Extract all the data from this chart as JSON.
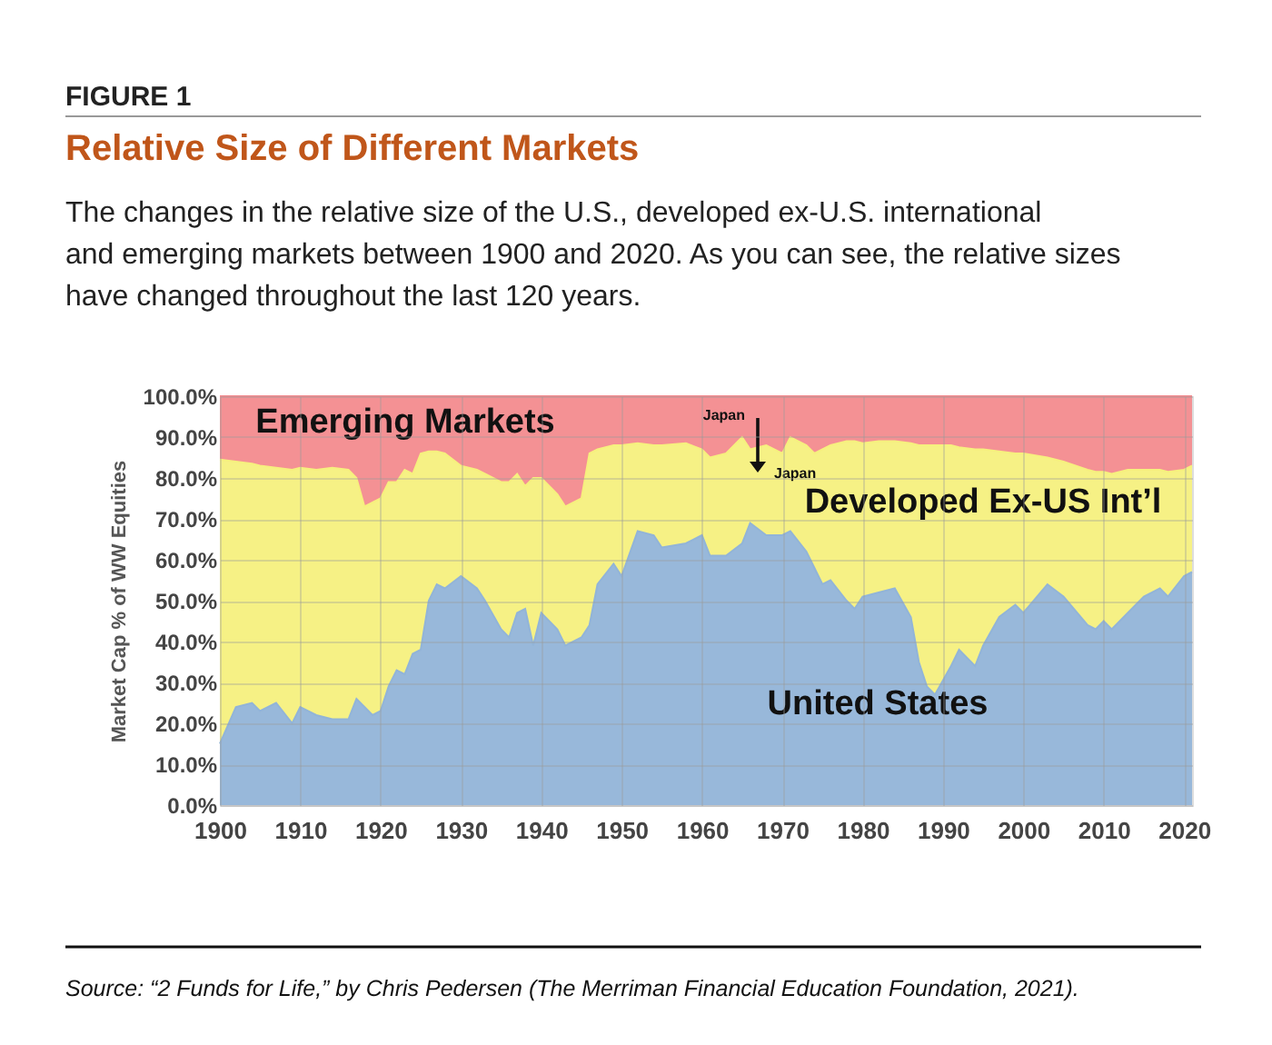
{
  "chart_data": {
    "type": "area",
    "stacked": true,
    "title": "Relative Size of Different Markets",
    "subtitle": "The changes in the relative size of the U.S., developed ex-U.S. international and emerging markets between 1900 and 2020. As you can see, the relative sizes have changed throughout the last 120 years.",
    "ylabel": "Market Cap % of WW Equities",
    "x": [
      1900,
      1902,
      1904,
      1905,
      1907,
      1909,
      1910,
      1912,
      1914,
      1916,
      1917,
      1918,
      1919,
      1920,
      1921,
      1922,
      1923,
      1924,
      1925,
      1926,
      1927,
      1928,
      1930,
      1932,
      1933,
      1935,
      1936,
      1937,
      1938,
      1939,
      1940,
      1942,
      1943,
      1945,
      1946,
      1947,
      1949,
      1950,
      1952,
      1954,
      1955,
      1958,
      1960,
      1961,
      1963,
      1965,
      1966,
      1968,
      1970,
      1971,
      1973,
      1974,
      1975,
      1976,
      1978,
      1979,
      1980,
      1982,
      1984,
      1986,
      1987,
      1988,
      1989,
      1991,
      1992,
      1994,
      1995,
      1997,
      1999,
      2000,
      2003,
      2005,
      2008,
      2009,
      2010,
      2011,
      2013,
      2015,
      2017,
      2018,
      2020,
      2021
    ],
    "series": [
      {
        "name": "United States",
        "color": "#92b4d8",
        "values": [
          15,
          24,
          25,
          23,
          25,
          20,
          24,
          22,
          21,
          21,
          26,
          24,
          22,
          23,
          29,
          33,
          32,
          37,
          38,
          50,
          54,
          53,
          56,
          53,
          50,
          43,
          41,
          47,
          48,
          39,
          47,
          43,
          39,
          41,
          44,
          54,
          59,
          56,
          67,
          66,
          63,
          64,
          66,
          61,
          61,
          64,
          69,
          66,
          66,
          67,
          62,
          58,
          54,
          55,
          50,
          48,
          51,
          52,
          53,
          46,
          35,
          29,
          27,
          34,
          38,
          34,
          39,
          46,
          49,
          47,
          54,
          51,
          44,
          43,
          45,
          43,
          47,
          51,
          53,
          51,
          56,
          57
        ]
      },
      {
        "name": "Developed Ex-US Int’l",
        "color": "#f6f07e",
        "values": [
          69.5,
          60,
          58.5,
          60,
          57.5,
          62,
          58.5,
          60,
          61.5,
          61,
          54,
          49,
          52,
          52,
          50,
          46,
          50,
          44,
          48,
          36.5,
          32.5,
          33,
          27,
          29,
          31,
          36,
          38,
          34,
          30,
          41,
          33,
          33,
          34,
          34,
          42,
          33,
          29,
          32,
          21.5,
          22,
          25,
          24.5,
          21,
          24,
          25,
          26,
          18,
          22,
          20,
          23,
          26,
          28,
          33,
          33,
          39,
          41,
          37.5,
          37,
          36,
          42.5,
          53,
          59,
          61,
          54,
          49.5,
          53,
          48,
          40.5,
          37,
          39,
          31,
          33,
          38,
          38.5,
          36.5,
          38,
          35,
          31,
          29,
          30.5,
          26,
          26
        ]
      },
      {
        "name": "Emerging Markets",
        "color": "#f38b8e",
        "values": [
          15.5,
          16,
          16.5,
          17,
          17.5,
          18,
          17.5,
          18,
          17.5,
          18,
          20,
          27,
          26,
          25,
          21,
          21,
          18,
          19,
          14,
          13.5,
          13.5,
          14,
          17,
          18,
          19,
          21,
          21,
          19,
          22,
          20,
          20,
          24,
          27,
          25,
          14,
          13,
          12,
          12,
          11.5,
          12,
          12,
          11.5,
          13,
          15,
          14,
          10,
          13,
          12,
          14,
          10,
          12,
          14,
          13,
          12,
          11,
          11,
          11.5,
          11,
          11,
          11.5,
          12,
          12,
          12,
          12,
          12.5,
          13,
          13,
          13.5,
          14,
          14,
          15,
          16,
          18,
          18.5,
          18.5,
          19,
          18,
          18,
          18,
          18.5,
          18,
          17
        ]
      }
    ],
    "xlim": [
      1900,
      2021
    ],
    "xticks": [
      1900,
      1910,
      1920,
      1930,
      1940,
      1950,
      1960,
      1970,
      1980,
      1990,
      2000,
      2010,
      2020
    ],
    "ylim": [
      0,
      100
    ],
    "yticks": [
      {
        "value": 0,
        "label": "0.0%"
      },
      {
        "value": 10,
        "label": "10.0%"
      },
      {
        "value": 20,
        "label": "20.0%"
      },
      {
        "value": 30,
        "label": "30.0%"
      },
      {
        "value": 40,
        "label": "40.0%"
      },
      {
        "value": 50,
        "label": "50.0%"
      },
      {
        "value": 60,
        "label": "60.0%"
      },
      {
        "value": 70,
        "label": "70.0%"
      },
      {
        "value": 80,
        "label": "80.0%"
      },
      {
        "value": 90,
        "label": "90.0%"
      },
      {
        "value": 100,
        "label": "100.0%"
      }
    ],
    "grid": true,
    "legend": false,
    "annotations": [
      "FIGURE 1",
      "Japan",
      "Japan",
      "Source: “2 Funds for Life,” by Chris Pedersen (The Merriman Financial Education Foundation, 2021)."
    ]
  }
}
